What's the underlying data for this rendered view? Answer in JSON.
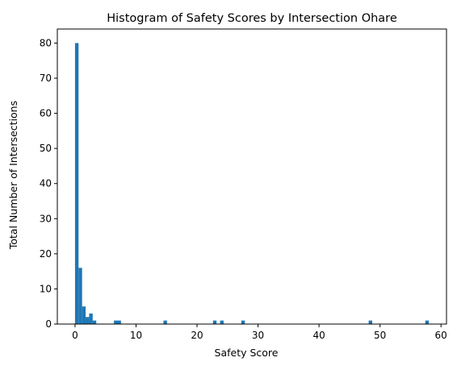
{
  "chart_data": {
    "type": "bar",
    "title": "Histogram of Safety Scores by Intersection Ohare",
    "xlabel": "Safety Score",
    "ylabel": "Total Number of Intersections",
    "xlim": [
      -2.9,
      60.9
    ],
    "ylim": [
      0,
      84
    ],
    "x_ticks": [
      0,
      10,
      20,
      30,
      40,
      50,
      60
    ],
    "y_ticks": [
      0,
      10,
      20,
      30,
      40,
      50,
      60,
      70,
      80
    ],
    "bar_color": "#1f77b4",
    "grid": false,
    "legend": "none",
    "bin_width": 0.58,
    "bins": [
      {
        "x": 0.0,
        "count": 80
      },
      {
        "x": 0.58,
        "count": 16
      },
      {
        "x": 1.16,
        "count": 5
      },
      {
        "x": 1.74,
        "count": 2
      },
      {
        "x": 2.32,
        "count": 3
      },
      {
        "x": 2.9,
        "count": 1
      },
      {
        "x": 6.38,
        "count": 1
      },
      {
        "x": 6.96,
        "count": 1
      },
      {
        "x": 14.5,
        "count": 1
      },
      {
        "x": 22.62,
        "count": 1
      },
      {
        "x": 23.78,
        "count": 1
      },
      {
        "x": 27.26,
        "count": 1
      },
      {
        "x": 48.14,
        "count": 1
      },
      {
        "x": 57.42,
        "count": 1
      }
    ]
  }
}
